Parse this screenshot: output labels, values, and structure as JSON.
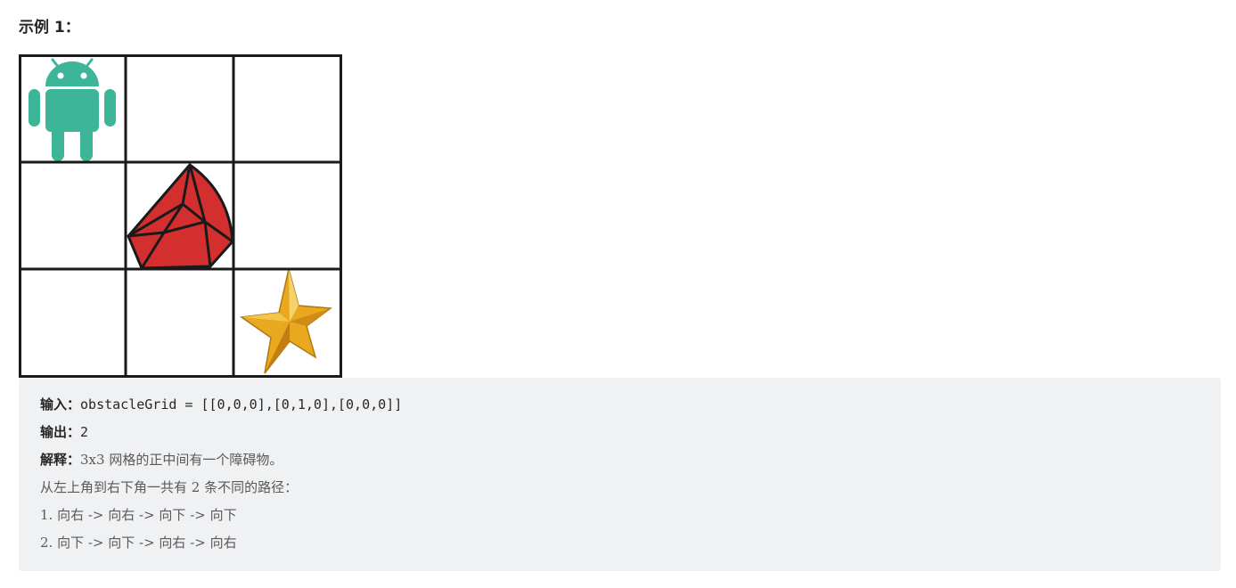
{
  "heading": "示例 1：",
  "example": {
    "input_label": "输入：",
    "input_value": "obstacleGrid = [[0,0,0],[0,1,0],[0,0,0]]",
    "output_label": "输出：",
    "output_value": "2",
    "explain_label": "解释：",
    "explain_value": "3x3 网格的正中间有一个障碍物。",
    "paths_intro": "从左上角到右下角一共有 2 条不同的路径：",
    "path1": "1. 向右 -> 向右 -> 向下 -> 向下",
    "path2": "2. 向下 -> 向下 -> 向右 -> 向右"
  },
  "grid": {
    "rows": 3,
    "cols": 3,
    "cells": [
      [
        "robot-icon",
        "empty",
        "empty"
      ],
      [
        "empty",
        "obstacle-gem-icon",
        "empty"
      ],
      [
        "empty",
        "empty",
        "star-goal-icon"
      ]
    ],
    "colors": {
      "robot": "#3db598",
      "gem": "#d32f2f",
      "star": "#e8a820",
      "line": "#1a1a1a"
    }
  }
}
